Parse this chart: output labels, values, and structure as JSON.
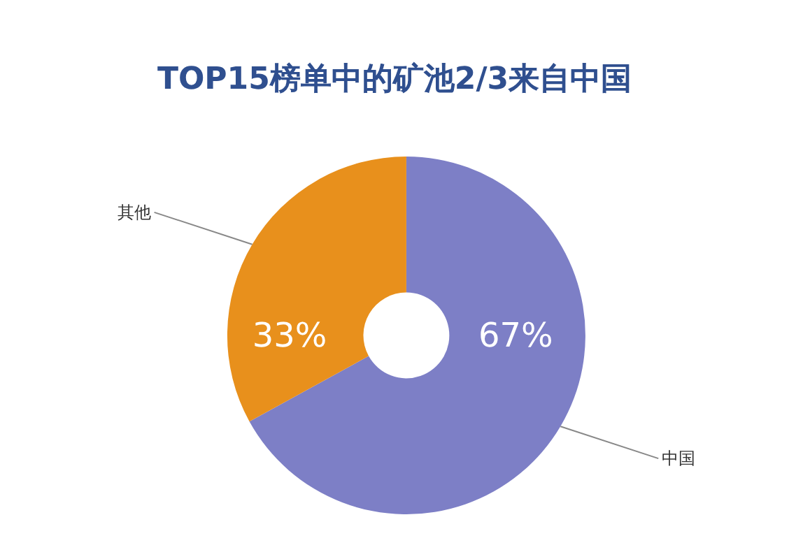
{
  "chart_data": {
    "type": "donut",
    "title": "TOP15榜单中的矿池2/3来自中国",
    "categories": [
      "中国",
      "其他"
    ],
    "values": [
      67,
      33
    ],
    "colors": [
      "#7d7fc6",
      "#e8901c"
    ],
    "value_labels": [
      "67%",
      "33%"
    ],
    "legend": false
  }
}
